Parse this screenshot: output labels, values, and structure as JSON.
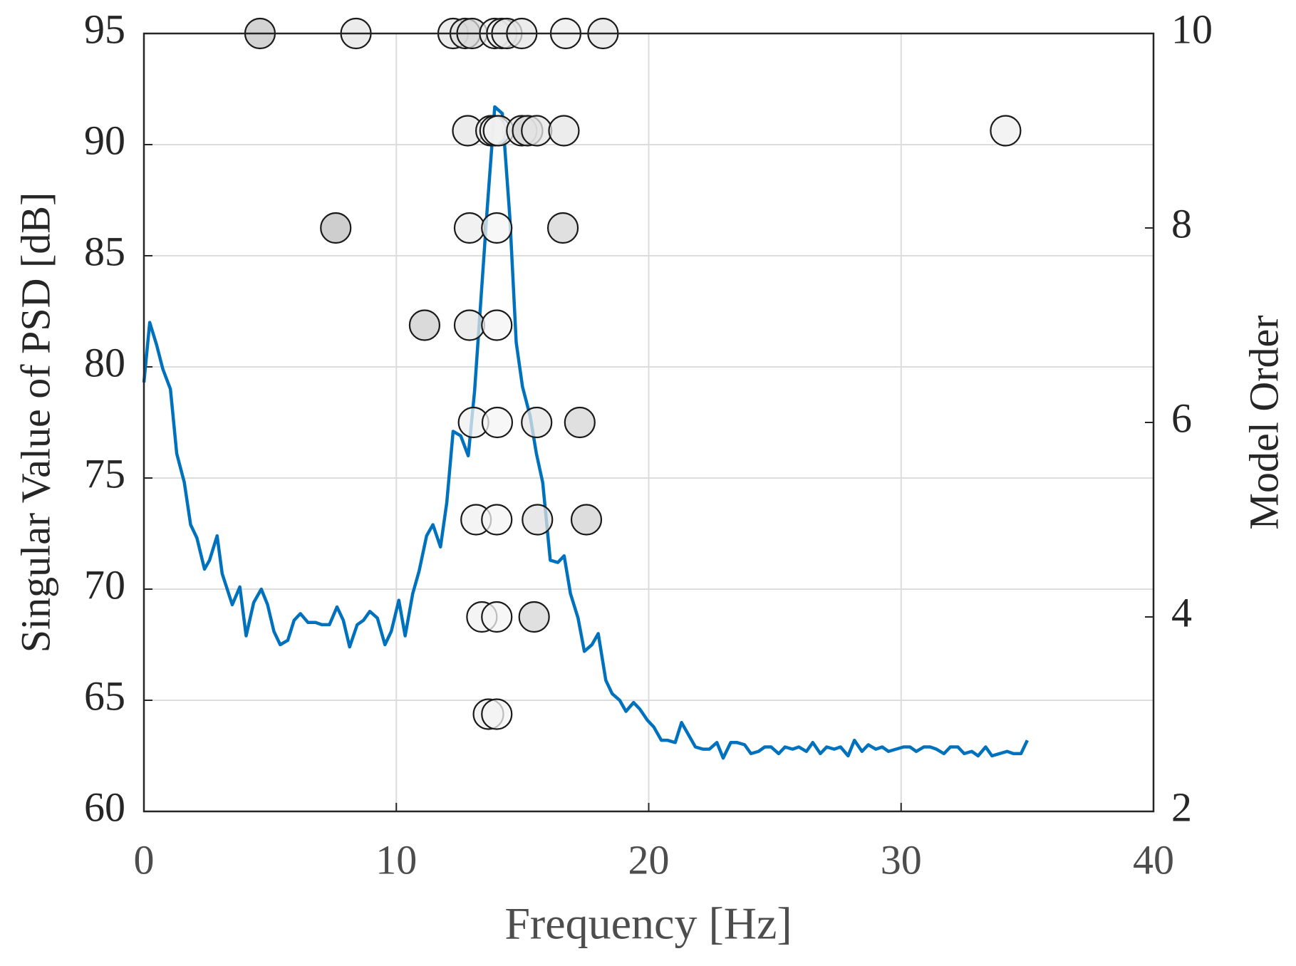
{
  "chart_data": {
    "type": "line",
    "xlabel": "Frequency [Hz]",
    "ylabel": "Singular Value of PSD [dB]",
    "y2label": "Model Order",
    "xlim": [
      0,
      40
    ],
    "xticks": [
      0,
      10,
      20,
      30,
      40
    ],
    "ylim": [
      60,
      95
    ],
    "yticks": [
      60,
      65,
      70,
      75,
      80,
      85,
      90,
      95
    ],
    "y2lim": [
      2,
      10
    ],
    "y2ticks": [
      2,
      4,
      6,
      8,
      10
    ],
    "grid": true,
    "series": [
      {
        "type": "line",
        "color": "#0072bd",
        "x": [
          0,
          0.23,
          0.5,
          0.75,
          1.05,
          1.3,
          1.6,
          1.85,
          2.1,
          2.4,
          2.6,
          2.9,
          3.1,
          3.5,
          3.8,
          4.05,
          4.35,
          4.65,
          4.9,
          5.15,
          5.4,
          5.7,
          5.95,
          6.2,
          6.5,
          6.8,
          7.05,
          7.35,
          7.65,
          7.9,
          8.15,
          8.45,
          8.7,
          8.95,
          9.25,
          9.55,
          9.8,
          10.1,
          10.35,
          10.65,
          10.9,
          11.2,
          11.45,
          11.75,
          12.0,
          12.25,
          12.55,
          12.85,
          13.1,
          13.35,
          13.6,
          13.9,
          14.2,
          14.5,
          14.75,
          15.0,
          15.3,
          15.55,
          15.8,
          16.1,
          16.4,
          16.65,
          16.9,
          17.2,
          17.45,
          17.75,
          18.0,
          18.3,
          18.55,
          18.85,
          19.1,
          19.4,
          19.65,
          19.95,
          20.2,
          20.5,
          20.75,
          21.05,
          21.3,
          21.6,
          21.85,
          22.15,
          22.4,
          22.7,
          22.95,
          23.25,
          23.5,
          23.8,
          24.05,
          24.35,
          24.6,
          24.85,
          25.15,
          25.4,
          25.7,
          25.95,
          26.25,
          26.5,
          26.8,
          27.05,
          27.35,
          27.6,
          27.9,
          28.15,
          28.45,
          28.7,
          29.0,
          29.25,
          29.5,
          29.8,
          30.1,
          30.35,
          30.6,
          30.9,
          31.15,
          31.4,
          31.7,
          31.95,
          32.25,
          32.5,
          32.8,
          33.05,
          33.35,
          33.6,
          33.9,
          34.2,
          34.45,
          34.75,
          35.0
        ],
        "values": [
          79.3,
          82.0,
          81.0,
          79.9,
          79.0,
          76.1,
          74.8,
          72.9,
          72.3,
          70.9,
          71.3,
          72.4,
          70.7,
          69.3,
          70.1,
          67.9,
          69.4,
          70.0,
          69.3,
          68.1,
          67.5,
          67.7,
          68.6,
          68.9,
          68.5,
          68.5,
          68.4,
          68.4,
          69.2,
          68.6,
          67.4,
          68.4,
          68.6,
          69.0,
          68.7,
          67.5,
          68.1,
          69.5,
          67.9,
          69.8,
          70.8,
          72.4,
          72.9,
          71.9,
          73.9,
          77.1,
          76.9,
          76.0,
          78.9,
          83.0,
          87.1,
          91.7,
          91.4,
          86.7,
          81.1,
          79.1,
          77.8,
          76.1,
          74.8,
          71.3,
          71.2,
          71.5,
          69.8,
          68.7,
          67.2,
          67.5,
          68.0,
          65.9,
          65.3,
          65.0,
          64.5,
          64.9,
          64.6,
          64.1,
          63.8,
          63.2,
          63.2,
          63.1,
          64.0,
          63.4,
          62.9,
          62.8,
          62.8,
          63.1,
          62.4,
          63.1,
          63.1,
          63.0,
          62.6,
          62.7,
          62.9,
          62.9,
          62.6,
          62.9,
          62.8,
          62.9,
          62.7,
          63.1,
          62.6,
          62.9,
          62.8,
          62.9,
          62.5,
          63.2,
          62.7,
          63.0,
          62.8,
          62.9,
          62.7,
          62.8,
          62.9,
          62.9,
          62.7,
          62.9,
          62.9,
          62.8,
          62.6,
          62.9,
          62.9,
          62.6,
          62.7,
          62.5,
          62.9,
          62.5,
          62.6,
          62.7,
          62.6,
          62.6,
          63.2
        ]
      },
      {
        "type": "scatter",
        "axis": "y2",
        "x": [
          4.6,
          8.4,
          12.25,
          12.73,
          13.0,
          13.9,
          14.18,
          14.38,
          14.97,
          16.71,
          18.19,
          12.83,
          13.75,
          13.91,
          14.05,
          14.97,
          15.2,
          15.56,
          16.64,
          34.14,
          7.6,
          12.9,
          13.98,
          16.6,
          11.12,
          12.9,
          13.98,
          13.06,
          14.0,
          15.56,
          17.27,
          13.16,
          13.98,
          15.59,
          17.53,
          13.39,
          13.98,
          15.46,
          13.65,
          13.98
        ],
        "values": [
          10,
          10,
          10,
          10,
          10,
          10,
          10,
          10,
          10,
          10,
          10,
          9,
          9,
          9,
          9,
          9,
          9,
          9,
          9,
          9,
          8,
          8,
          8,
          8,
          7,
          7,
          7,
          6,
          6,
          6,
          6,
          5,
          5,
          5,
          5,
          4,
          4,
          4,
          3,
          3
        ],
        "colors": [
          "#c4c4c4",
          "#e6e6e6",
          "#e6e6e6",
          "#e0e0e0",
          "#d8d8d8",
          "#ececec",
          "#f0f0f0",
          "#e6e6e6",
          "#e6e6e6",
          "#ececec",
          "#e6e6e6",
          "#e6e6e6",
          "#f0f0f0",
          "#f0f0f0",
          "#f0f0f0",
          "#e6e6e6",
          "#d4d4d4",
          "#e6e6e6",
          "#e6e6e6",
          "#efefef",
          "#bdbdbd",
          "#ececec",
          "#f4f4f4",
          "#d6d6d6",
          "#cdcdcd",
          "#e6e6e6",
          "#f4f4f4",
          "#f0f0f0",
          "#f4f4f4",
          "#e6e6e6",
          "#d6d6d6",
          "#f0f0f0",
          "#f4f4f4",
          "#e0e0e0",
          "#d2d2d2",
          "#f0f0f0",
          "#f4f4f4",
          "#d6d6d6",
          "#f0f0f0",
          "#f4f4f4"
        ]
      }
    ]
  }
}
